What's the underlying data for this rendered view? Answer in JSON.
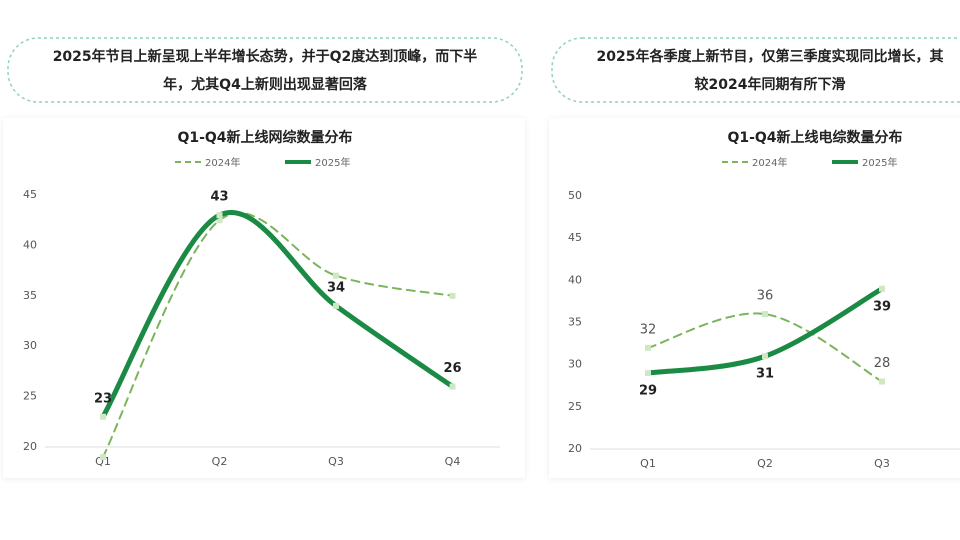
{
  "chart_data": [
    {
      "type": "line",
      "annotation": [
        "2025年节目上新呈现上半年增长态势，并于Q2度达到顶峰，而下半",
        "年，尤其Q4上新则出现显著回落"
      ],
      "title": "Q1-Q4新上线网综数量分布",
      "categories": [
        "Q1",
        "Q2",
        "Q3",
        "Q4"
      ],
      "series": [
        {
          "name": "2024年",
          "color": "#7ab55c",
          "dashed": true,
          "show_labels": false,
          "label_position": "above",
          "values": [
            19,
            42.5,
            37,
            35
          ]
        },
        {
          "name": "2025年",
          "color": "#1a8a44",
          "dashed": false,
          "show_labels": true,
          "label_position": "above",
          "values": [
            23,
            43,
            34,
            26
          ]
        }
      ],
      "ylim": [
        20,
        45
      ],
      "yticks": [
        20,
        25,
        30,
        35,
        40,
        45
      ]
    },
    {
      "type": "line",
      "annotation": [
        "2025年各季度上新节目，仅第三季度实现同比增长，其",
        "较2024年同期有所下滑"
      ],
      "title": "Q1-Q4新上线电综数量分布",
      "categories": [
        "Q1",
        "Q2",
        "Q3"
      ],
      "series": [
        {
          "name": "2024年",
          "color": "#7ab55c",
          "dashed": true,
          "show_labels": true,
          "label_position": "above",
          "values": [
            32,
            36,
            28
          ]
        },
        {
          "name": "2025年",
          "color": "#1a8a44",
          "dashed": false,
          "show_labels": true,
          "label_position": "below",
          "values": [
            29,
            31,
            39
          ]
        }
      ],
      "ylim": [
        20,
        50
      ],
      "yticks": [
        20,
        25,
        30,
        35,
        40,
        45,
        50
      ]
    }
  ]
}
